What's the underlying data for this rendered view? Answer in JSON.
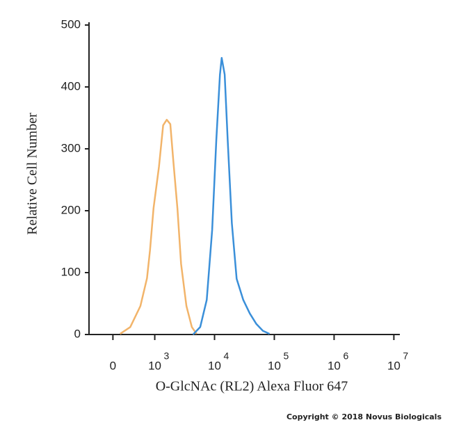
{
  "chart_data": {
    "type": "line",
    "y_label": "Relative Cell Number",
    "x_label": "O-GlcNAc (RL2) Alexa Fluor 647",
    "footer": "Copyright © 2018 Novus Biologicals",
    "xlim": [
      1.9,
      7.1
    ],
    "ylim": [
      0,
      500
    ],
    "yticks": [
      0,
      100,
      200,
      300,
      400,
      500
    ],
    "xticks": [
      {
        "value": 2.3,
        "label": "0"
      },
      {
        "value": 3,
        "label": "10",
        "exponent": "3"
      },
      {
        "value": 4,
        "label": "10",
        "exponent": "4"
      },
      {
        "value": 5,
        "label": "10",
        "exponent": "5"
      },
      {
        "value": 6,
        "label": "10",
        "exponent": "6"
      },
      {
        "value": 7,
        "label": "10",
        "exponent": "7"
      }
    ],
    "series": [
      {
        "color": "#f2b46a",
        "x": [
          2.42,
          2.59,
          2.76,
          2.87,
          2.92,
          2.98,
          3.07,
          3.14,
          3.2,
          3.26,
          3.31,
          3.38,
          3.44,
          3.53,
          3.62,
          3.7
        ],
        "values": [
          1,
          12,
          46,
          91,
          136,
          204,
          271,
          338,
          347,
          340,
          281,
          203,
          114,
          46,
          12,
          1
        ]
      },
      {
        "color": "#3a8fd9",
        "x": [
          3.64,
          3.76,
          3.87,
          3.96,
          4.03,
          4.09,
          4.12,
          4.17,
          4.22,
          4.29,
          4.37,
          4.48,
          4.59,
          4.7,
          4.81,
          4.92
        ],
        "values": [
          0,
          12,
          56,
          169,
          315,
          420,
          447,
          420,
          315,
          180,
          90,
          56,
          34,
          17,
          6,
          1
        ]
      }
    ]
  }
}
